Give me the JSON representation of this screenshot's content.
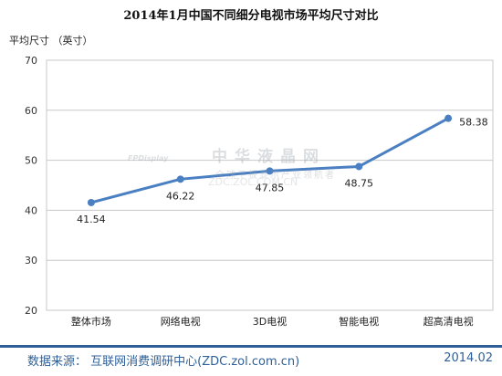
{
  "chart_data": {
    "type": "line",
    "title": "2014年1月中国不同细分电视市场平均尺寸对比",
    "ylabel": "平均尺寸 （英寸）",
    "xlabel": "",
    "categories": [
      "整体市场",
      "网络电视",
      "3D电视",
      "智能电视",
      "超高清电视"
    ],
    "values": [
      41.54,
      46.22,
      47.85,
      48.75,
      58.38
    ],
    "data_labels": [
      "41.54",
      "46.22",
      "47.85",
      "48.75",
      "58.38"
    ],
    "ylim": [
      20,
      70
    ],
    "yticks": [
      "20",
      "30",
      "40",
      "50",
      "60",
      "70"
    ],
    "grid": true,
    "line_color": "#4a7fc1"
  },
  "watermark": {
    "main": "中华液晶网",
    "sub": "全球平板显示产业领航者",
    "url": "ZDC.ZOL.COM.CN",
    "logo": "FPDisplay"
  },
  "footer": {
    "source": "数据来源：  互联网消费调研中心(ZDC.zol.com.cn)",
    "date": "2014.02"
  }
}
